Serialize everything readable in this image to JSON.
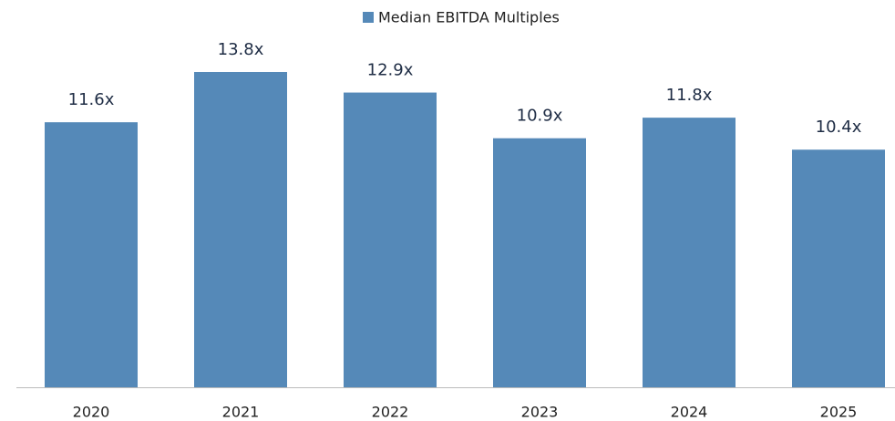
{
  "chart_data": {
    "type": "bar",
    "legend": "Median EBITDA Multiples",
    "categories": [
      "2020",
      "2021",
      "2022",
      "2023",
      "2024",
      "2025"
    ],
    "values": [
      11.6,
      13.8,
      12.9,
      10.9,
      11.8,
      10.4
    ],
    "value_labels": [
      "11.6x",
      "13.8x",
      "12.9x",
      "10.9x",
      "11.8x",
      "10.4x"
    ],
    "color": "#5589b8"
  }
}
